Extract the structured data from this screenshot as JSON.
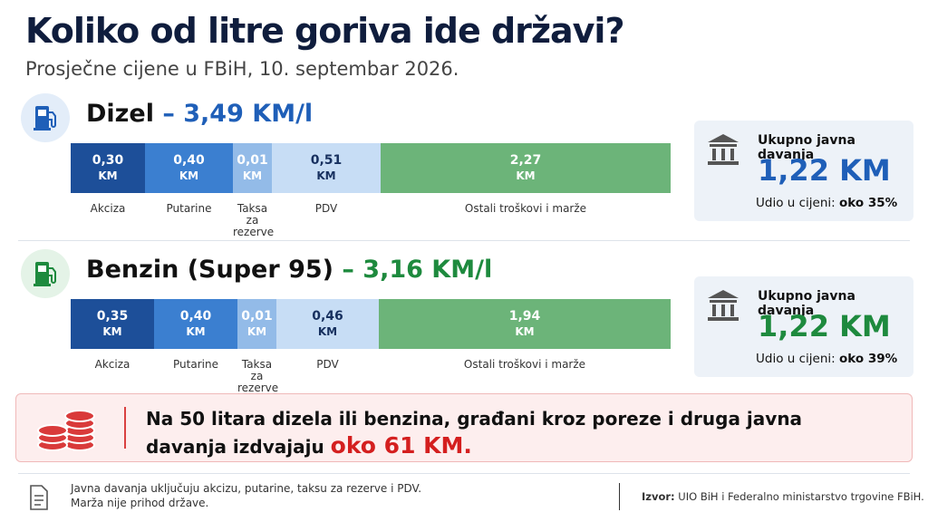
{
  "header": {
    "title": "Koliko od litre goriva ide državi?",
    "subtitle": "Prosječne cijene u FBiH, 10. septembar 2026."
  },
  "fuels": [
    {
      "name": "Dizel",
      "price": "– 3,49 KM/l",
      "segments": [
        {
          "amount": "0,30",
          "unit": "KM",
          "label": "Akciza"
        },
        {
          "amount": "0,40",
          "unit": "KM",
          "label": "Putarine"
        },
        {
          "amount": "0,01",
          "unit": "KM",
          "label": "Taksa za rezerve"
        },
        {
          "amount": "0,51",
          "unit": "KM",
          "label": "PDV"
        },
        {
          "amount": "2,27",
          "unit": "KM",
          "label": "Ostali troškovi i marže"
        }
      ],
      "summary": {
        "title": "Ukupno javna davanja",
        "total": "1,22 KM",
        "share_label": "Udio u cijeni:",
        "share": "oko 35%"
      }
    },
    {
      "name": "Benzin (Super 95)",
      "price": "– 3,16 KM/l",
      "segments": [
        {
          "amount": "0,35",
          "unit": "KM",
          "label": "Akciza"
        },
        {
          "amount": "0,40",
          "unit": "KM",
          "label": "Putarine"
        },
        {
          "amount": "0,01",
          "unit": "KM",
          "label": "Taksa za rezerve"
        },
        {
          "amount": "0,46",
          "unit": "KM",
          "label": "PDV"
        },
        {
          "amount": "1,94",
          "unit": "KM",
          "label": "Ostali troškovi i marže"
        }
      ],
      "summary": {
        "title": "Ukupno javna davanja",
        "total": "1,22 KM",
        "share_label": "Udio u cijeni:",
        "share": "oko 39%"
      }
    }
  ],
  "callout": {
    "text": "Na 50 litara dizela ili benzina, građani kroz poreze i druga javna davanja izdvajaju",
    "highlight": "oko 61 KM."
  },
  "footer": {
    "note_lines": [
      "Javna davanja uključuju akcizu, putarine, taksu za rezerve i PDV.",
      "Marža nije prihod države."
    ],
    "source_label": "Izvor:",
    "source": "UIO BiH i Federalno ministarstvo trgovine FBiH."
  }
}
